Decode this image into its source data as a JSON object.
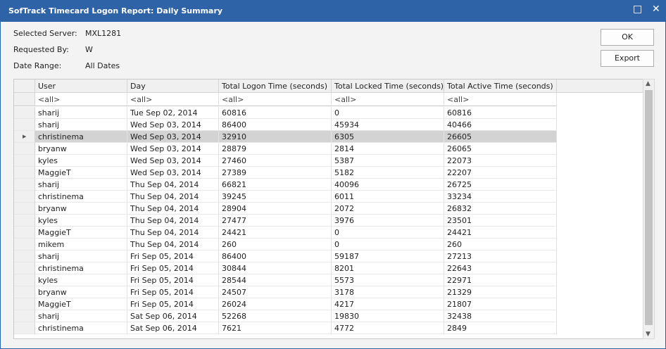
{
  "window": {
    "title": "SofTrack Timecard Logon Report: Daily Summary",
    "ok": "OK",
    "export": "Export"
  },
  "info": [
    {
      "label": "Selected Server:",
      "value": "MXL1281"
    },
    {
      "label": "Requested By:",
      "value": "W"
    },
    {
      "label": "Date Range:",
      "value": "All Dates"
    }
  ],
  "table": {
    "columns": [
      "User",
      "Day",
      "Total Logon Time (seconds)",
      "Total Locked Time (seconds)",
      "Total Active Time (seconds)"
    ],
    "filters": [
      "<all>",
      "<all>",
      "<all>",
      "<all>",
      "<all>"
    ],
    "rows": [
      [
        "sharij",
        "Tue Sep 02, 2014",
        60816,
        0,
        60816
      ],
      [
        "sharij",
        "Wed Sep 03, 2014",
        86400,
        45934,
        40466
      ],
      [
        "christinema",
        "Wed Sep 03, 2014",
        32910,
        6305,
        26605
      ],
      [
        "bryanw",
        "Wed Sep 03, 2014",
        28879,
        2814,
        26065
      ],
      [
        "kyles",
        "Wed Sep 03, 2014",
        27460,
        5387,
        22073
      ],
      [
        "MaggieT",
        "Wed Sep 03, 2014",
        27389,
        5182,
        22207
      ],
      [
        "sharij",
        "Thu Sep 04, 2014",
        66821,
        40096,
        26725
      ],
      [
        "christinema",
        "Thu Sep 04, 2014",
        39245,
        6011,
        33234
      ],
      [
        "bryanw",
        "Thu Sep 04, 2014",
        28904,
        2072,
        26832
      ],
      [
        "kyles",
        "Thu Sep 04, 2014",
        27477,
        3976,
        23501
      ],
      [
        "MaggieT",
        "Thu Sep 04, 2014",
        24421,
        0,
        24421
      ],
      [
        "mikem",
        "Thu Sep 04, 2014",
        260,
        0,
        260
      ],
      [
        "sharij",
        "Fri Sep 05, 2014",
        86400,
        59187,
        27213
      ],
      [
        "christinema",
        "Fri Sep 05, 2014",
        30844,
        8201,
        22643
      ],
      [
        "kyles",
        "Fri Sep 05, 2014",
        28544,
        5573,
        22971
      ],
      [
        "bryanw",
        "Fri Sep 05, 2014",
        24507,
        3178,
        21329
      ],
      [
        "MaggieT",
        "Fri Sep 05, 2014",
        26024,
        4217,
        21807
      ],
      [
        "sharij",
        "Sat Sep 06, 2014",
        52268,
        19830,
        32438
      ],
      [
        "christinema",
        "Sat Sep 06, 2014",
        7621,
        4772,
        2849
      ]
    ]
  }
}
